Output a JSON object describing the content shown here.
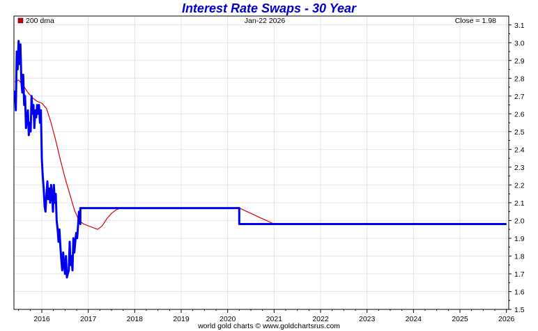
{
  "chart_data": {
    "type": "line",
    "title": "Interest Rate Swaps - 30 Year",
    "legend": {
      "label": "200 dma",
      "color": "#cc0000",
      "placement": "top-left"
    },
    "date_label": "Jan-22  2026",
    "close_label": "Close = 1.98",
    "footer": "world gold charts © www.goldchartsrus.com",
    "xlim": [
      2015.4,
      2026.05
    ],
    "ylim": [
      1.5,
      3.15
    ],
    "x_ticks": [
      2016,
      2017,
      2018,
      2019,
      2020,
      2021,
      2022,
      2023,
      2024,
      2025,
      2026
    ],
    "x_tick_labels": [
      "2016",
      "2017",
      "2018",
      "2019",
      "2020",
      "2021",
      "2022",
      "2023",
      "2024",
      "2025",
      "2026"
    ],
    "y_ticks": [
      1.5,
      1.6,
      1.7,
      1.8,
      1.9,
      2.0,
      2.1,
      2.2,
      2.3,
      2.4,
      2.5,
      2.6,
      2.7,
      2.8,
      2.9,
      3.0,
      3.1
    ],
    "y_tick_labels": [
      "1.5",
      "1.6",
      "1.7",
      "1.8",
      "1.9",
      "2.0",
      "2.1",
      "2.2",
      "2.3",
      "2.4",
      "2.5",
      "2.6",
      "2.7",
      "2.8",
      "2.9",
      "3.0",
      "3.1"
    ],
    "grid": true,
    "series": [
      {
        "name": "",
        "color": "#0000ee",
        "x": [
          2015.42,
          2015.44,
          2015.46,
          2015.48,
          2015.5,
          2015.52,
          2015.54,
          2015.56,
          2015.58,
          2015.6,
          2015.62,
          2015.64,
          2015.66,
          2015.68,
          2015.7,
          2015.72,
          2015.74,
          2015.76,
          2015.78,
          2015.8,
          2015.82,
          2015.84,
          2015.86,
          2015.88,
          2015.9,
          2015.92,
          2015.94,
          2015.96,
          2015.98,
          2016.0,
          2016.02,
          2016.04,
          2016.06,
          2016.08,
          2016.1,
          2016.12,
          2016.14,
          2016.16,
          2016.18,
          2016.2,
          2016.22,
          2016.24,
          2016.26,
          2016.28,
          2016.3,
          2016.32,
          2016.34,
          2016.36,
          2016.38,
          2016.4,
          2016.42,
          2016.44,
          2016.46,
          2016.48,
          2016.5,
          2016.52,
          2016.54,
          2016.56,
          2016.58,
          2016.6,
          2016.62,
          2016.64,
          2016.66,
          2016.68,
          2016.7,
          2016.72,
          2016.74,
          2016.76,
          2016.78,
          2016.8,
          2016.83,
          2016.83,
          2020.25,
          2020.25,
          2026.0
        ],
        "y": [
          2.73,
          2.62,
          2.95,
          2.85,
          3.01,
          2.88,
          2.99,
          2.78,
          2.72,
          2.82,
          2.65,
          2.7,
          2.52,
          2.58,
          2.62,
          2.48,
          2.55,
          2.5,
          2.7,
          2.6,
          2.65,
          2.52,
          2.62,
          2.58,
          2.65,
          2.6,
          2.65,
          2.55,
          2.62,
          2.35,
          2.25,
          2.18,
          2.08,
          2.05,
          2.15,
          2.22,
          2.12,
          2.18,
          2.1,
          2.2,
          2.15,
          2.05,
          2.2,
          2.1,
          2.15,
          2.0,
          1.95,
          1.88,
          1.95,
          1.85,
          1.78,
          1.72,
          1.82,
          1.75,
          1.7,
          1.8,
          1.68,
          1.7,
          1.72,
          1.88,
          1.75,
          1.8,
          1.72,
          1.9,
          1.82,
          1.88,
          1.93,
          1.9,
          1.97,
          2.05,
          1.98,
          2.07,
          2.07,
          1.98,
          1.98
        ]
      },
      {
        "name": "200 dma",
        "color": "#dd0000",
        "x": [
          2015.42,
          2015.5,
          2015.6,
          2015.7,
          2015.8,
          2015.9,
          2016.0,
          2016.1,
          2016.2,
          2016.3,
          2016.4,
          2016.5,
          2016.6,
          2016.7,
          2016.8,
          2016.9,
          2017.0,
          2017.1,
          2017.2,
          2017.3,
          2017.4,
          2017.5,
          2017.6,
          2017.7,
          2017.8,
          2020.25,
          2020.5,
          2020.75,
          2021.0,
          2026.0
        ],
        "y": [
          2.78,
          2.79,
          2.76,
          2.72,
          2.69,
          2.67,
          2.66,
          2.63,
          2.55,
          2.45,
          2.34,
          2.24,
          2.15,
          2.06,
          2.0,
          1.98,
          1.97,
          1.96,
          1.95,
          1.97,
          2.01,
          2.04,
          2.06,
          2.07,
          2.07,
          2.07,
          2.04,
          2.01,
          1.98,
          1.98
        ]
      }
    ]
  }
}
